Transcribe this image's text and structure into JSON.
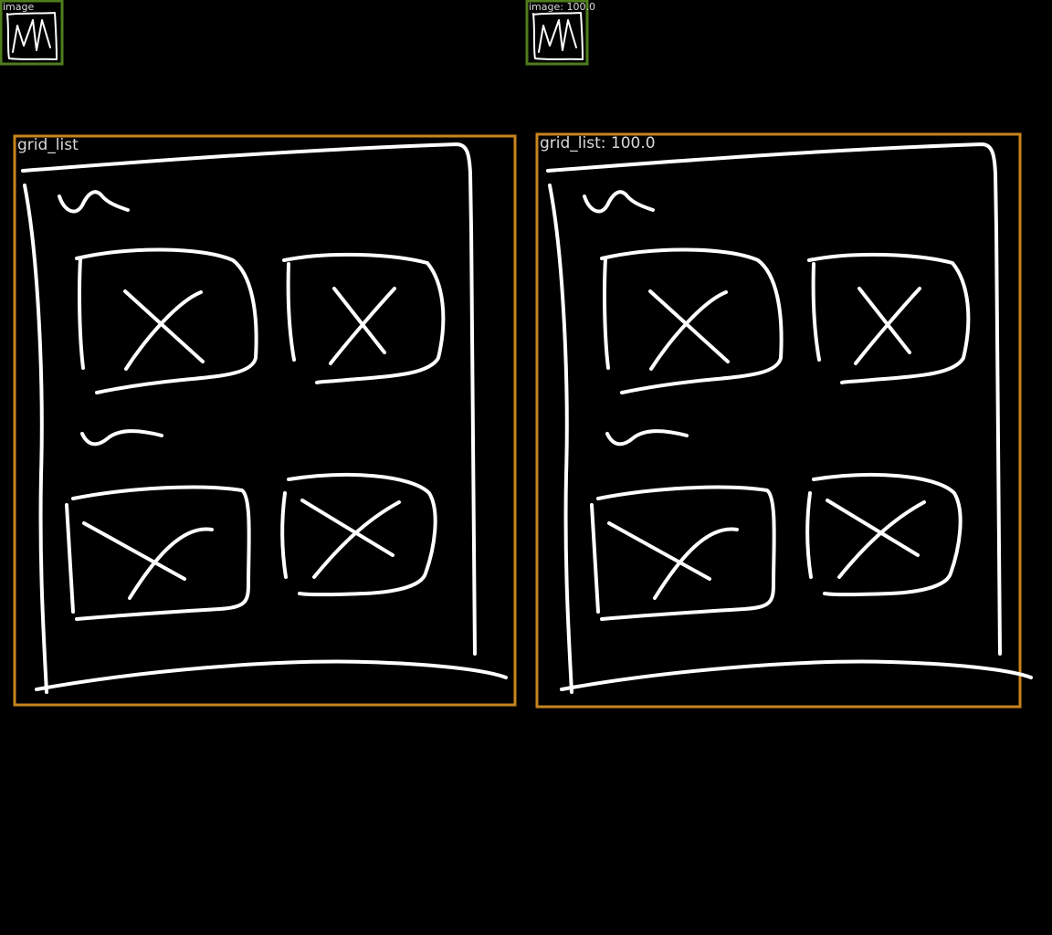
{
  "colors": {
    "background": "#000000",
    "image_box": "#4e7d1e",
    "grid_list_box": "#c8841e",
    "label_text": "#d9d9d9",
    "sketch": "#ffffff"
  },
  "left_panel": {
    "image_label": "image",
    "grid_list_label": "grid_list"
  },
  "right_panel": {
    "image_label": "image: 100.0",
    "grid_list_label": "grid_list: 100.0"
  }
}
